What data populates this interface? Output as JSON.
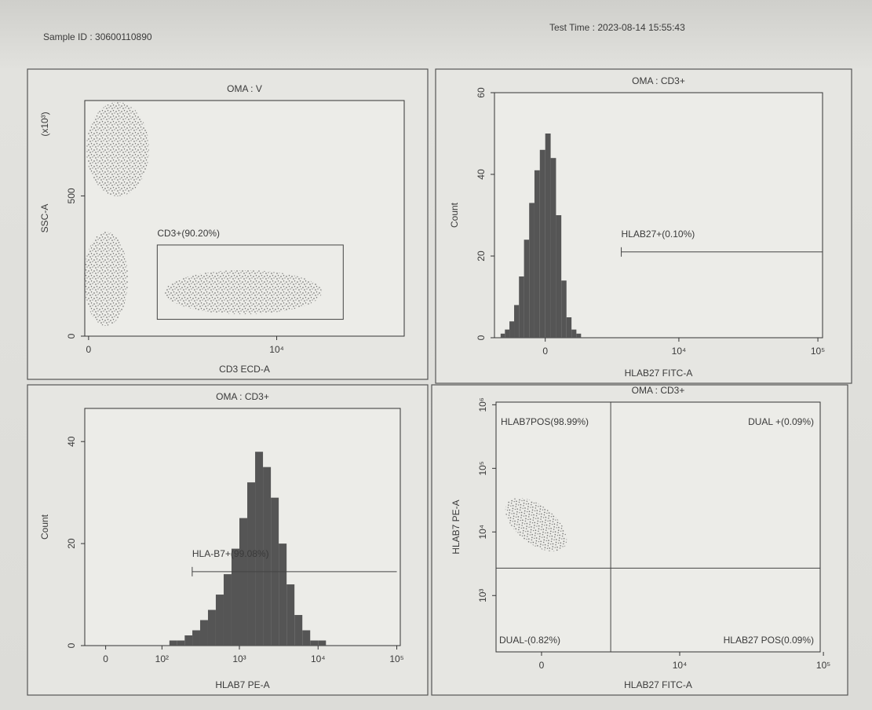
{
  "header": {
    "sample_id": "Sample ID : 30600110890",
    "test_time": "Test Time : 2023-08-14 15:55:43"
  },
  "chart_data": [
    {
      "type": "scatter",
      "title": "OMA : V",
      "x_label": "CD3 ECD-A",
      "y_label": "SSC-A",
      "y_unit": "(x10³)",
      "xscale": "biexponential",
      "xlim": [
        -100,
        45000
      ],
      "xticks": [
        0,
        {
          "value": 10000,
          "label": "10⁴"
        }
      ],
      "ylim": [
        0,
        840
      ],
      "yticks": [
        0,
        500
      ],
      "gate": {
        "label": "CD3+(90.20%)",
        "x": [
          2000,
          22000
        ],
        "y": [
          60,
          325
        ]
      }
    },
    {
      "type": "histogram",
      "title": "OMA : CD3+",
      "x_label": "HLAB27 FITC-A",
      "y_label": "Count",
      "color": "#555555",
      "xscale": "biexponential",
      "xlim": [
        -2100,
        108000
      ],
      "xticks": [
        0,
        {
          "value": 10000,
          "label": "10⁴"
        },
        {
          "value": 100000,
          "label": "10⁵"
        }
      ],
      "ylim": [
        0,
        60
      ],
      "yticks": [
        0,
        20,
        40,
        60
      ],
      "bins": [
        -1800,
        -1600,
        -1400,
        -1200,
        -1000,
        -800,
        -600,
        -400,
        -200,
        0,
        200,
        400,
        600,
        800,
        1000,
        1200,
        1400
      ],
      "values": [
        1,
        2,
        4,
        8,
        15,
        24,
        33,
        41,
        46,
        50,
        44,
        30,
        14,
        5,
        2,
        1
      ],
      "marker": {
        "label": "HLAB27+(0.10%)",
        "x": [
          3600,
          108000
        ],
        "y": 21
      }
    },
    {
      "type": "histogram",
      "title": "OMA : CD3+",
      "x_label": "HLAB7 PE-A",
      "y_label": "Count",
      "color": "#555555",
      "xscale": "biexponential",
      "xlim": [
        -26,
        110800
      ],
      "xticks": [
        0,
        {
          "value": 100,
          "label": "10²"
        },
        {
          "value": 1000,
          "label": "10³"
        },
        {
          "value": 10000,
          "label": "10⁴"
        },
        {
          "value": 100000,
          "label": "10⁵"
        }
      ],
      "ylim": [
        0,
        46.5
      ],
      "yticks": [
        0,
        20,
        40
      ],
      "bins": [
        126,
        158,
        200,
        251,
        316,
        398,
        501,
        631,
        794,
        1000,
        1259,
        1585,
        1995,
        2512,
        3162,
        3981,
        5012,
        6310,
        7943,
        10000,
        12589
      ],
      "values": [
        1,
        1,
        2,
        3,
        5,
        7,
        10,
        14,
        19,
        25,
        32,
        38,
        35,
        29,
        20,
        12,
        6,
        3,
        1,
        1
      ],
      "marker": {
        "label": "HLA-B7+(99.08%)",
        "x": [
          250,
          100000
        ],
        "y": 14.5
      }
    },
    {
      "type": "scatter",
      "title": "OMA : CD3+",
      "x_label": "HLAB27 FITC-A",
      "y_label": "HLAB7 PE-A",
      "xscale": "biexponential",
      "xlim": [
        -1770,
        95000
      ],
      "xticks": [
        0,
        {
          "value": 10000,
          "label": "10⁴"
        },
        {
          "value": 100000,
          "label": "10⁵"
        }
      ],
      "yscale": "log",
      "ylim": [
        130,
        1100000
      ],
      "yticks": [
        {
          "value": 1000,
          "label": "10³"
        },
        {
          "value": 10000,
          "label": "10⁴"
        },
        {
          "value": 100000,
          "label": "10⁵"
        },
        {
          "value": 1000000,
          "label": "10⁶"
        }
      ],
      "quadrants": {
        "x": 3000,
        "y": 2700,
        "labels": [
          "HLAB7POS(98.99%)",
          "DUAL +(0.09%)",
          "DUAL-(0.82%)",
          "HLAB27 POS(0.09%)"
        ]
      }
    }
  ]
}
